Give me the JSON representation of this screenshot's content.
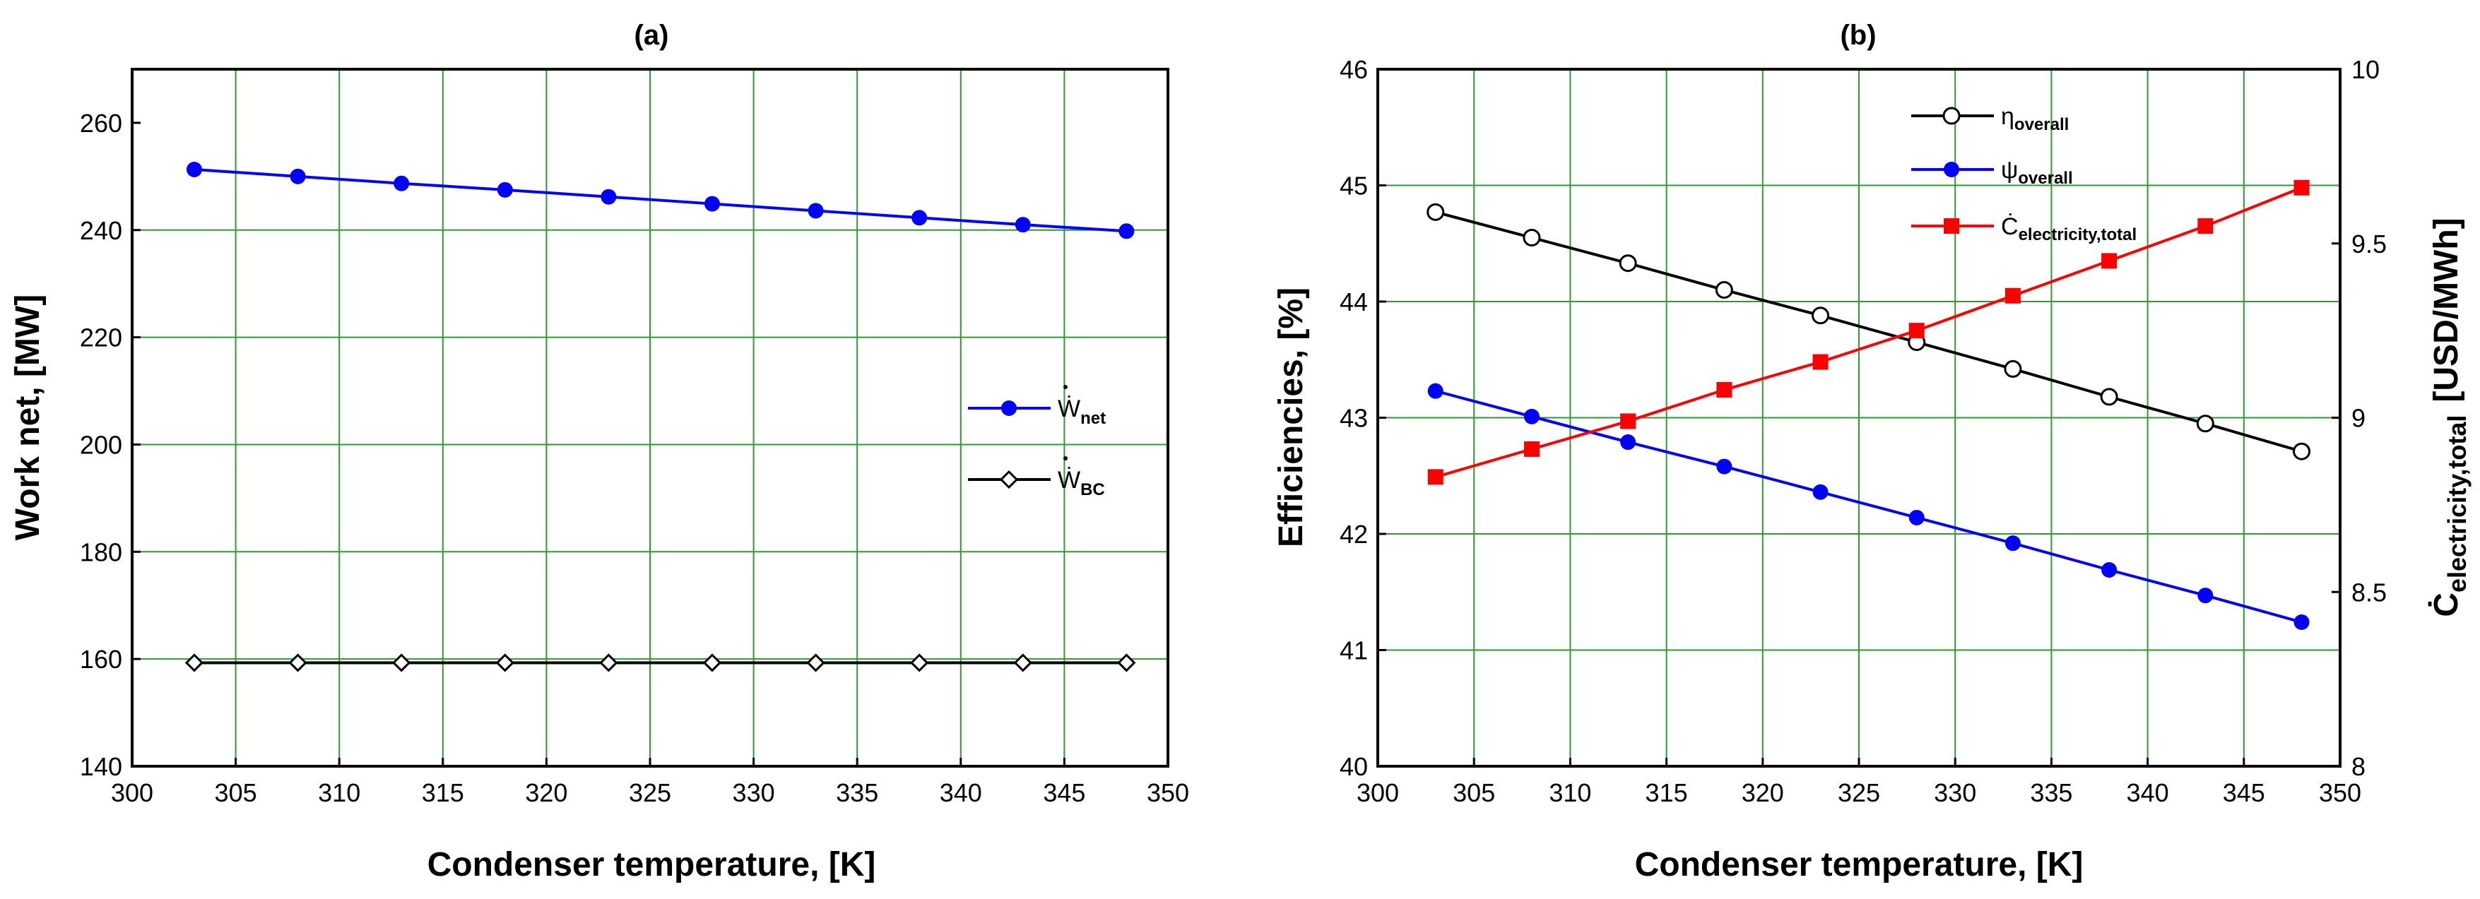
{
  "chart_data": [
    {
      "type": "line",
      "title": "(a)",
      "xlabel": "Condenser temperature, [K]",
      "ylabel": "Work net, [MW]",
      "xlim": [
        300,
        350
      ],
      "ylim": [
        140,
        270
      ],
      "xticks": [
        300,
        305,
        310,
        315,
        320,
        325,
        330,
        335,
        340,
        345,
        350
      ],
      "yticks": [
        140,
        160,
        180,
        200,
        220,
        240,
        260
      ],
      "grid": true,
      "legend_position": "center-right",
      "x": [
        303,
        308,
        313,
        318,
        323,
        328,
        333,
        338,
        343,
        348
      ],
      "series": [
        {
          "name": "Ẇnet",
          "legend_main": "Ẇ",
          "legend_sub": "net",
          "color": "#0000ff",
          "marker": "filled-circle",
          "values": [
            251.3,
            250.0,
            248.7,
            247.5,
            246.2,
            244.9,
            243.6,
            242.3,
            241.0,
            239.8
          ]
        },
        {
          "name": "ẆBC",
          "legend_main": "Ẇ",
          "legend_sub": "BC",
          "color": "#000000",
          "marker": "open-diamond",
          "values": [
            159.3,
            159.3,
            159.3,
            159.3,
            159.3,
            159.3,
            159.3,
            159.3,
            159.3,
            159.3
          ]
        }
      ]
    },
    {
      "type": "line",
      "title": "(b)",
      "xlabel": "Condenser temperature, [K]",
      "ylabel": "Efficiencies, [%]",
      "y2label_main": "Ċ",
      "y2label_sub": "electricity,total",
      "y2label_unit": "[USD/MWh]",
      "xlim": [
        300,
        350
      ],
      "ylim": [
        40,
        46
      ],
      "y2lim": [
        8,
        10
      ],
      "xticks": [
        300,
        305,
        310,
        315,
        320,
        325,
        330,
        335,
        340,
        345,
        350
      ],
      "yticks": [
        40,
        41,
        42,
        43,
        44,
        45,
        46
      ],
      "y2ticks": [
        8,
        8.5,
        9,
        9.5,
        10
      ],
      "grid": true,
      "legend_position": "top-right",
      "x": [
        303,
        308,
        313,
        318,
        323,
        328,
        333,
        338,
        343,
        348
      ],
      "series": [
        {
          "name": "ηoverall",
          "legend_main": "η",
          "legend_sub": "overall",
          "color": "#000000",
          "marker": "open-circle",
          "axis": "left",
          "values": [
            44.77,
            44.55,
            44.33,
            44.1,
            43.88,
            43.65,
            43.42,
            43.18,
            42.95,
            42.71
          ]
        },
        {
          "name": "ψoverall",
          "legend_main": "ψ",
          "legend_sub": "overall",
          "color": "#0000ff",
          "marker": "filled-circle",
          "axis": "left",
          "values": [
            43.23,
            43.01,
            42.79,
            42.58,
            42.36,
            42.14,
            41.92,
            41.69,
            41.47,
            41.24
          ]
        },
        {
          "name": "Ċelectricity,total",
          "legend_main": "Ċ",
          "legend_sub": "electricity,total",
          "color": "#ff0000",
          "marker": "filled-square",
          "axis": "right",
          "values": [
            8.83,
            8.91,
            8.99,
            9.08,
            9.16,
            9.25,
            9.35,
            9.45,
            9.55,
            9.66
          ]
        }
      ]
    }
  ]
}
